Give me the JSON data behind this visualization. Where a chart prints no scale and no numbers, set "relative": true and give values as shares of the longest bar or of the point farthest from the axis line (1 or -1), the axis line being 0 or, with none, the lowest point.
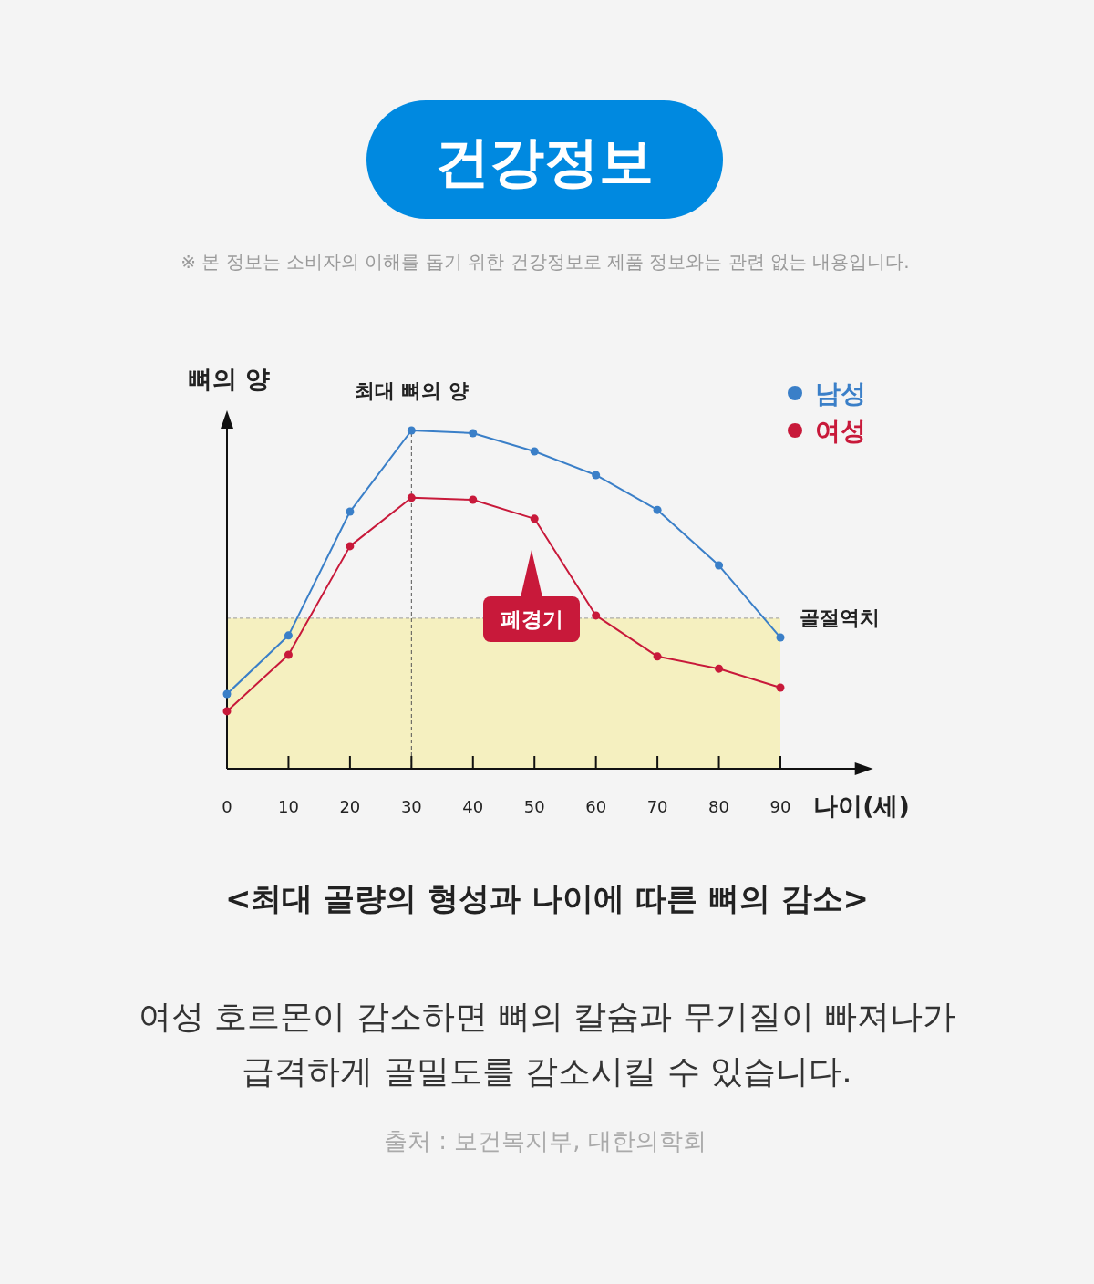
{
  "chart_data": {
    "type": "line",
    "title": "건강정보",
    "subtitle": "※ 본 정보는 소비자의 이해를 돕기 위한 건강정보로 제품 정보와는 관련 없는 내용입니다.",
    "xlabel": "나이(세)",
    "ylabel": "뼈의 양",
    "relative": true,
    "x": [
      0,
      10,
      20,
      30,
      40,
      50,
      60,
      70,
      80,
      90
    ],
    "xlim": [
      0,
      103
    ],
    "xticks": [
      0,
      10,
      20,
      30,
      40,
      50,
      60,
      70,
      80,
      90
    ],
    "marker": "circle",
    "legend": "top right",
    "series": [
      {
        "name": "남성",
        "color": "#3a7fc8",
        "values": [
          0.221,
          0.394,
          0.76,
          1,
          0.992,
          0.938,
          0.868,
          0.765,
          0.601,
          0.388
        ]
      },
      {
        "name": "여성",
        "color": "#c8193a",
        "values": [
          0.17,
          0.337,
          0.658,
          0.801,
          0.795,
          0.739,
          0.453,
          0.332,
          0.296,
          0.24
        ]
      }
    ],
    "bands": [
      {
        "axis": "y",
        "from": 0,
        "to": 0.445,
        "color": "#f5f0c0"
      }
    ],
    "ref_lines": [
      {
        "axis": "x",
        "value": 30,
        "label": "최대 뼈의 양",
        "line_style": "dashed"
      },
      {
        "axis": "y",
        "value": 0.445,
        "label": "골절역치",
        "line_style": "dashed"
      }
    ],
    "annotations": [
      "폐경기",
      "<최대 골량의 형성과 나이에 따른 뼈의 감소>",
      "여성 호르몬이 감소하면 뼈의 칼슘과 무기질이 빠져나가",
      "급격하게 골밀도를 감소시킬 수 있습니다.",
      "출처 : 보건복지부, 대한의학회"
    ]
  }
}
